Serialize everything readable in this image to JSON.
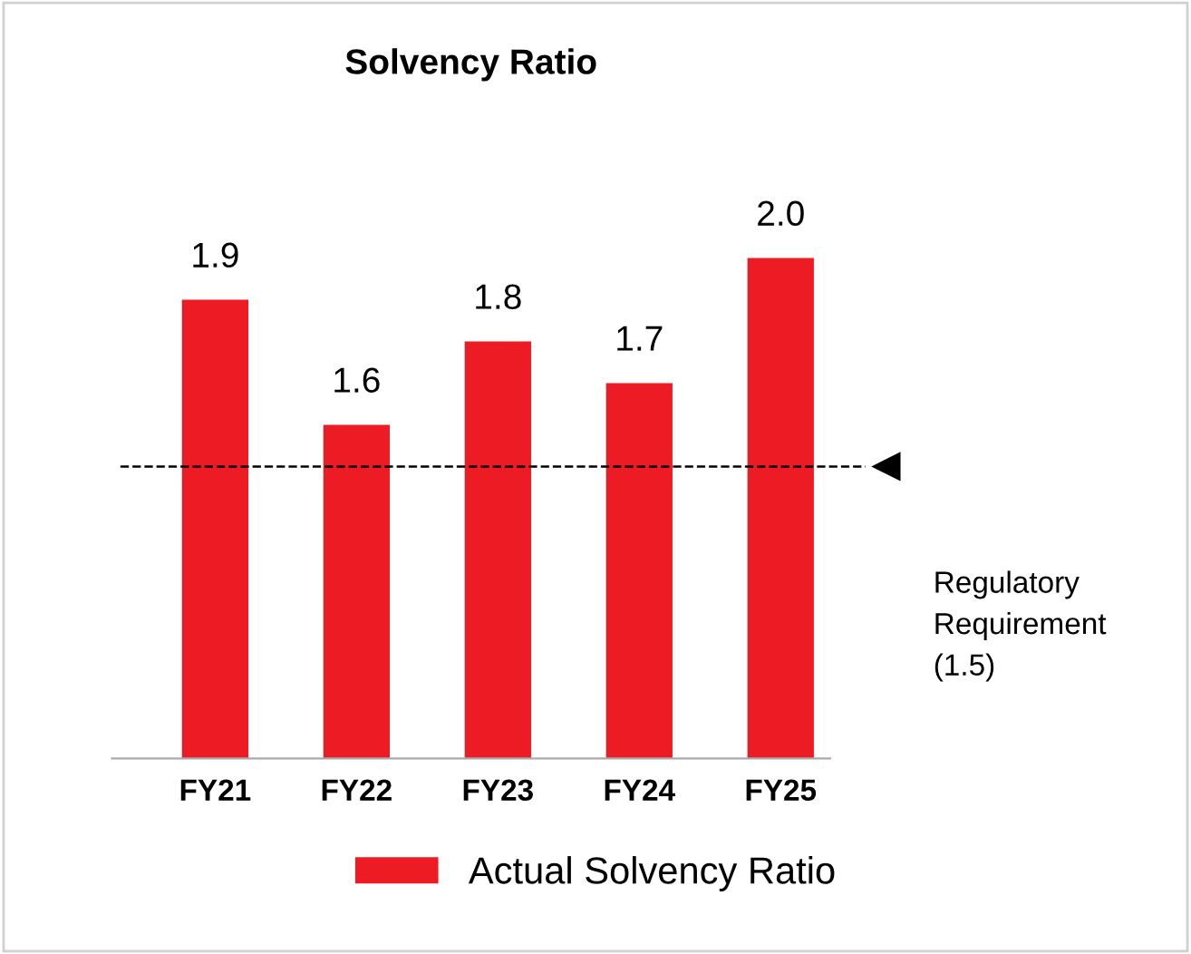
{
  "chart_data": {
    "type": "bar",
    "title": "Solvency Ratio",
    "categories": [
      "FY21",
      "FY22",
      "FY23",
      "FY24",
      "FY25"
    ],
    "series": [
      {
        "name": "Actual Solvency Ratio",
        "color": "#ed1c24",
        "values": [
          1.9,
          1.6,
          1.8,
          1.7,
          2.0
        ],
        "value_labels": [
          "1.9",
          "1.6",
          "1.8",
          "1.7",
          "2.0"
        ]
      }
    ],
    "ref_lines": [
      {
        "axis": "y",
        "value": 1.5,
        "label": "Regulatory\nRequirement\n(1.5)",
        "color": "#000000",
        "line_style": "dashed"
      }
    ],
    "legend": "bottom",
    "grid": false
  }
}
